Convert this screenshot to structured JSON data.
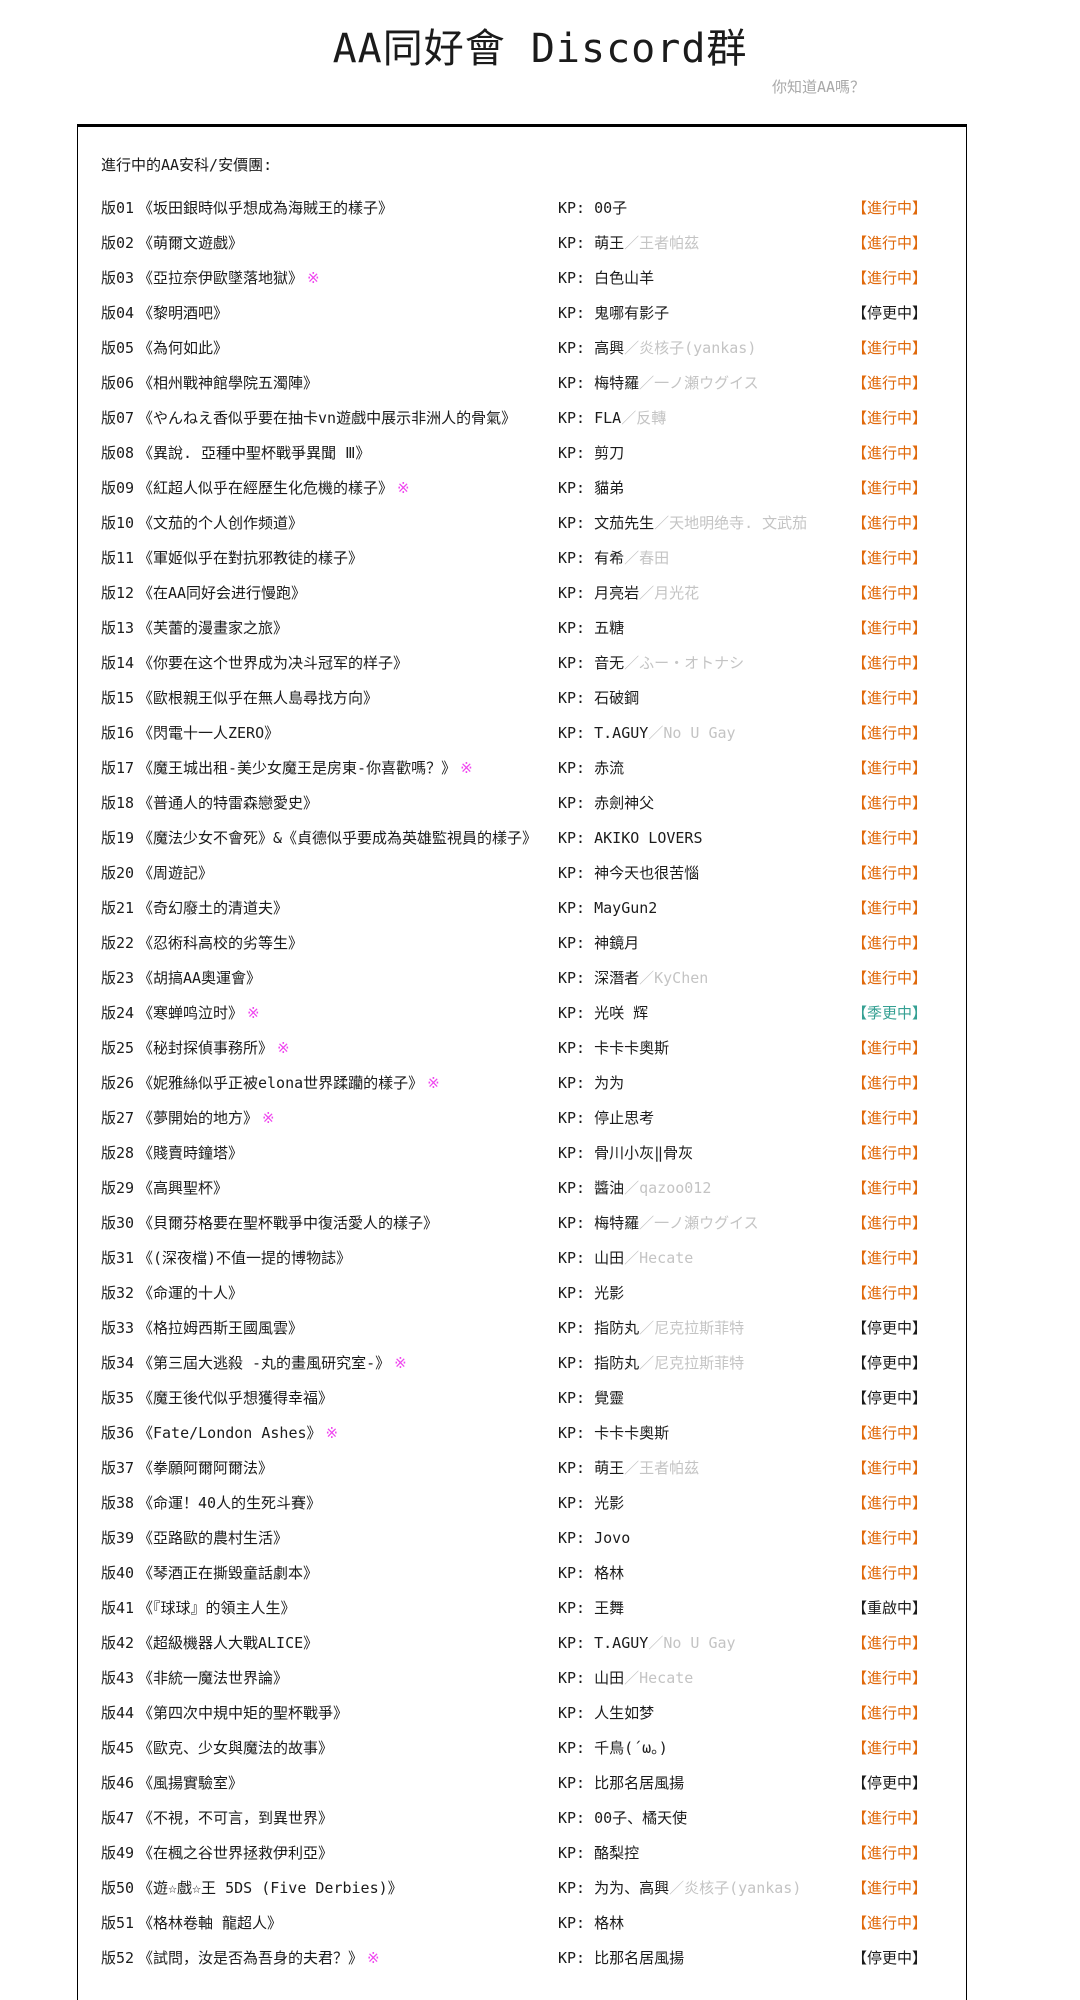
{
  "page": {
    "title": "AA同好會 Discord群",
    "subtitle": "你知道AA嗎？",
    "list_header": "進行中的AA安科/安價團:",
    "star_glyph": "※"
  },
  "colors": {
    "text": "#1b1b1b",
    "secondary": "#c4c4c4",
    "subtitle": "#a9a9a9",
    "border": "#000000",
    "star": "#ef46ef",
    "status_active": "#e0690b",
    "status_paused": "#1b1b1b",
    "status_seasonal": "#35a093",
    "status_restart": "#1b1b1b"
  },
  "statuses": {
    "active": "【進行中】",
    "paused": "【停更中】",
    "seasonal": "【季更中】",
    "restart": "【重啟中】"
  },
  "rows": [
    {
      "no": "版01",
      "title": "《坂田銀時似乎想成為海賊王的樣子》",
      "star": false,
      "kp": "KP: 00子",
      "kp_sub": "",
      "status": "active"
    },
    {
      "no": "版02",
      "title": "《萌爾文遊戲》",
      "star": false,
      "kp": "KP: 萌王",
      "kp_sub": "／王者帕茲",
      "status": "active"
    },
    {
      "no": "版03",
      "title": "《亞拉奈伊歐墜落地獄》",
      "star": true,
      "kp": "KP: 白色山羊",
      "kp_sub": "",
      "status": "active"
    },
    {
      "no": "版04",
      "title": "《黎明酒吧》",
      "star": false,
      "kp": "KP: 鬼哪有影子",
      "kp_sub": "",
      "status": "paused"
    },
    {
      "no": "版05",
      "title": "《為何如此》",
      "star": false,
      "kp": "KP: 高興",
      "kp_sub": "／炎核子(yankas)",
      "status": "active"
    },
    {
      "no": "版06",
      "title": "《相州戰神館學院五濁陣》",
      "star": false,
      "kp": "KP: 梅特羅",
      "kp_sub": "／一ノ瀬ウグイス",
      "status": "active"
    },
    {
      "no": "版07",
      "title": "《やんねえ香似乎要在抽卡vn遊戲中展示非洲人的骨氣》",
      "star": false,
      "kp": "KP: FLA",
      "kp_sub": "／反轉",
      "status": "active"
    },
    {
      "no": "版08",
      "title": "《異說. 亞種中聖杯戰爭異聞 Ⅲ》",
      "star": false,
      "kp": "KP: 剪刀",
      "kp_sub": "",
      "status": "active"
    },
    {
      "no": "版09",
      "title": "《紅超人似乎在經歷生化危機的樣子》",
      "star": true,
      "kp": "KP: 貓弟",
      "kp_sub": "",
      "status": "active"
    },
    {
      "no": "版10",
      "title": "《文茄的个人创作频道》",
      "star": false,
      "kp": "KP: 文茄先生",
      "kp_sub": "／天地明绝寺. 文武茄",
      "status": "active"
    },
    {
      "no": "版11",
      "title": "《軍姬似乎在對抗邪教徒的樣子》",
      "star": false,
      "kp": "KP: 有希",
      "kp_sub": "／春田",
      "status": "active"
    },
    {
      "no": "版12",
      "title": "《在AA同好会进行慢跑》",
      "star": false,
      "kp": "KP: 月亮岩",
      "kp_sub": "／月光花",
      "status": "active"
    },
    {
      "no": "版13",
      "title": "《芙蕾的漫畫家之旅》",
      "star": false,
      "kp": "KP: 五糖",
      "kp_sub": "",
      "status": "active"
    },
    {
      "no": "版14",
      "title": "《你要在这个世界成为决斗冠军的样子》",
      "star": false,
      "kp": "KP: 音无",
      "kp_sub": "／ふー・オトナシ",
      "status": "active"
    },
    {
      "no": "版15",
      "title": "《歐根親王似乎在無人島尋找方向》",
      "star": false,
      "kp": "KP: 石破鋼",
      "kp_sub": "",
      "status": "active"
    },
    {
      "no": "版16",
      "title": "《閃電十一人ZERO》",
      "star": false,
      "kp": "KP: T.AGUY",
      "kp_sub": "／No U Gay",
      "status": "active"
    },
    {
      "no": "版17",
      "title": "《魔王城出租-美少女魔王是房東-你喜歡嗎？》",
      "star": true,
      "kp": "KP: 赤流",
      "kp_sub": "",
      "status": "active"
    },
    {
      "no": "版18",
      "title": "《普通人的特雷森戀愛史》",
      "star": false,
      "kp": "KP: 赤劍神父",
      "kp_sub": "",
      "status": "active"
    },
    {
      "no": "版19",
      "title": "《魔法少女不會死》&《貞德似乎要成為英雄監視員的樣子》",
      "star": false,
      "kp": "KP: AKIKO LOVERS",
      "kp_sub": "",
      "status": "active"
    },
    {
      "no": "版20",
      "title": "《周遊記》",
      "star": false,
      "kp": "KP: 神今天也很苦惱",
      "kp_sub": "",
      "status": "active"
    },
    {
      "no": "版21",
      "title": "《奇幻廢土的清道夫》",
      "star": false,
      "kp": "KP: MayGun2",
      "kp_sub": "",
      "status": "active"
    },
    {
      "no": "版22",
      "title": "《忍術科高校的劣等生》",
      "star": false,
      "kp": "KP: 神鏡月",
      "kp_sub": "",
      "status": "active"
    },
    {
      "no": "版23",
      "title": "《胡搞AA奧運會》",
      "star": false,
      "kp": "KP: 深潛者",
      "kp_sub": "／KyChen",
      "status": "active"
    },
    {
      "no": "版24",
      "title": "《寒蝉鸣泣时》",
      "star": true,
      "kp": "KP: 光咲 辉",
      "kp_sub": "",
      "status": "seasonal"
    },
    {
      "no": "版25",
      "title": "《秘封探偵事務所》",
      "star": true,
      "kp": "KP: 卡卡卡奧斯",
      "kp_sub": "",
      "status": "active"
    },
    {
      "no": "版26",
      "title": "《妮雅絲似乎正被elona世界蹂躪的樣子》",
      "star": true,
      "kp": "KP: 为为",
      "kp_sub": "",
      "status": "active"
    },
    {
      "no": "版27",
      "title": "《夢開始的地方》",
      "star": true,
      "kp": "KP: 停止思考",
      "kp_sub": "",
      "status": "active"
    },
    {
      "no": "版28",
      "title": "《賤賣時鐘塔》",
      "star": false,
      "kp": "KP: 骨川小灰‖骨灰",
      "kp_sub": "",
      "status": "active"
    },
    {
      "no": "版29",
      "title": "《高興聖杯》",
      "star": false,
      "kp": "KP: 醬油",
      "kp_sub": "／qazoo012",
      "status": "active"
    },
    {
      "no": "版30",
      "title": "《貝爾芬格要在聖杯戰爭中復活愛人的樣子》",
      "star": false,
      "kp": "KP: 梅特羅",
      "kp_sub": "／一ノ瀬ウグイス",
      "status": "active"
    },
    {
      "no": "版31",
      "title": "《(深夜檔)不值一提的博物誌》",
      "star": false,
      "kp": "KP: 山田",
      "kp_sub": "／Hecate",
      "status": "active"
    },
    {
      "no": "版32",
      "title": "《命運的十人》",
      "star": false,
      "kp": "KP: 光影",
      "kp_sub": "",
      "status": "active"
    },
    {
      "no": "版33",
      "title": "《格拉姆西斯王國風雲》",
      "star": false,
      "kp": "KP: 指防丸",
      "kp_sub": "／尼克拉斯菲特",
      "status": "paused"
    },
    {
      "no": "版34",
      "title": "《第三屆大逃殺 -丸的畫風研究室-》",
      "star": true,
      "kp": "KP: 指防丸",
      "kp_sub": "／尼克拉斯菲特",
      "status": "paused"
    },
    {
      "no": "版35",
      "title": "《魔王後代似乎想獲得幸福》",
      "star": false,
      "kp": "KP: 覺靈",
      "kp_sub": "",
      "status": "paused"
    },
    {
      "no": "版36",
      "title": "《Fate/London Ashes》",
      "star": true,
      "kp": "KP: 卡卡卡奧斯",
      "kp_sub": "",
      "status": "active"
    },
    {
      "no": "版37",
      "title": "《拳願阿爾阿爾法》",
      "star": false,
      "kp": "KP: 萌王",
      "kp_sub": "／王者帕茲",
      "status": "active"
    },
    {
      "no": "版38",
      "title": "《命運！40人的生死斗賽》",
      "star": false,
      "kp": "KP: 光影",
      "kp_sub": "",
      "status": "active"
    },
    {
      "no": "版39",
      "title": "《亞路歐的農村生活》",
      "star": false,
      "kp": "KP: Jovo",
      "kp_sub": "",
      "status": "active"
    },
    {
      "no": "版40",
      "title": "《琴酒正在撕毀童話劇本》",
      "star": false,
      "kp": "KP: 格林",
      "kp_sub": "",
      "status": "active"
    },
    {
      "no": "版41",
      "title": "《『球球』的領主人生》",
      "star": false,
      "kp": "KP: 王舞",
      "kp_sub": "",
      "status": "restart"
    },
    {
      "no": "版42",
      "title": "《超級機器人大戰ALICE》",
      "star": false,
      "kp": "KP: T.AGUY",
      "kp_sub": "／No U Gay",
      "status": "active"
    },
    {
      "no": "版43",
      "title": "《非統一魔法世界論》",
      "star": false,
      "kp": "KP: 山田",
      "kp_sub": "／Hecate",
      "status": "active"
    },
    {
      "no": "版44",
      "title": "《第四次中規中矩的聖杯戰爭》",
      "star": false,
      "kp": "KP: 人生如梦",
      "kp_sub": "",
      "status": "active"
    },
    {
      "no": "版45",
      "title": "《歐克、少女與魔法的故事》",
      "star": false,
      "kp": "KP: 千鳥(´ω｡)",
      "kp_sub": "",
      "status": "active"
    },
    {
      "no": "版46",
      "title": "《風揚實驗室》",
      "star": false,
      "kp": "KP: 比那名居風揚",
      "kp_sub": "",
      "status": "paused"
    },
    {
      "no": "版47",
      "title": "《不視，不可言，到異世界》",
      "star": false,
      "kp": "KP: 00子、橘天使",
      "kp_sub": "",
      "status": "active"
    },
    {
      "no": "版49",
      "title": "《在楓之谷世界拯救伊利亞》",
      "star": false,
      "kp": "KP: 酪梨控",
      "kp_sub": "",
      "status": "active"
    },
    {
      "no": "版50",
      "title": "《遊☆戲☆王 5DS (Five Derbies)》",
      "star": false,
      "kp": "KP: 为为、高興",
      "kp_sub": "／炎核子(yankas)",
      "status": "active"
    },
    {
      "no": "版51",
      "title": "《格林卷軸 龍超人》",
      "star": false,
      "kp": "KP: 格林",
      "kp_sub": "",
      "status": "active"
    },
    {
      "no": "版52",
      "title": "《試問，汝是否為吾身的夫君？》",
      "star": true,
      "kp": "KP: 比那名居風揚",
      "kp_sub": "",
      "status": "paused"
    }
  ]
}
